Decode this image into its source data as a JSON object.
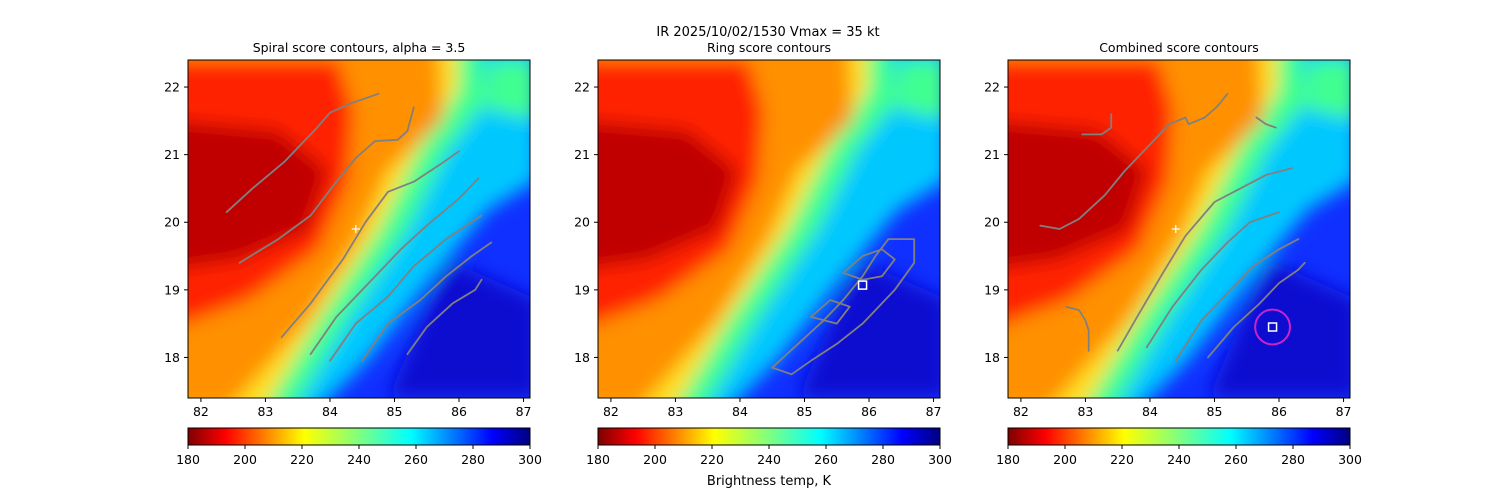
{
  "suptitle": "IR  2025/10/02/1530    Vmax = 35 kt",
  "colorbar_label": "Brightness temp, K",
  "contour_color": "#808080",
  "marker_color": "#ffffff",
  "circle_color": "#cc22cc",
  "colormap": "jet_r",
  "chart_data": [
    {
      "type": "heatmap",
      "title": "Spiral score contours, alpha =  3.5",
      "xlim": [
        81.8,
        87.1
      ],
      "ylim": [
        17.4,
        22.4
      ],
      "xticks": [
        "82",
        "83",
        "84",
        "85",
        "86",
        "87"
      ],
      "yticks": [
        "18",
        "19",
        "20",
        "21",
        "22"
      ],
      "colorbar": {
        "range": [
          180,
          300
        ],
        "ticks": [
          "180",
          "200",
          "220",
          "240",
          "260",
          "280",
          "300"
        ]
      },
      "center_marker": {
        "x": 84.4,
        "y": 19.9,
        "symbol": "+"
      },
      "contours": [
        [
          [
            82.4,
            20.15
          ],
          [
            82.8,
            20.5
          ],
          [
            83.3,
            20.9
          ],
          [
            83.8,
            21.4
          ],
          [
            84.0,
            21.62
          ],
          [
            84.3,
            21.75
          ],
          [
            84.75,
            21.9
          ]
        ],
        [
          [
            82.6,
            19.4
          ],
          [
            83.2,
            19.75
          ],
          [
            83.7,
            20.1
          ],
          [
            84.1,
            20.6
          ],
          [
            84.4,
            20.95
          ],
          [
            84.7,
            21.2
          ],
          [
            85.05,
            21.22
          ],
          [
            85.2,
            21.35
          ],
          [
            85.3,
            21.7
          ]
        ],
        [
          [
            83.25,
            18.3
          ],
          [
            83.7,
            18.8
          ],
          [
            84.2,
            19.45
          ],
          [
            84.55,
            20.0
          ],
          [
            84.9,
            20.45
          ],
          [
            85.3,
            20.6
          ],
          [
            85.7,
            20.85
          ],
          [
            86.0,
            21.05
          ]
        ],
        [
          [
            83.7,
            18.05
          ],
          [
            84.1,
            18.6
          ],
          [
            84.6,
            19.1
          ],
          [
            85.1,
            19.6
          ],
          [
            85.5,
            19.95
          ],
          [
            86.0,
            20.35
          ],
          [
            86.3,
            20.65
          ]
        ],
        [
          [
            84.0,
            17.95
          ],
          [
            84.4,
            18.5
          ],
          [
            84.9,
            18.9
          ],
          [
            85.3,
            19.35
          ],
          [
            85.8,
            19.75
          ],
          [
            86.35,
            20.1
          ]
        ],
        [
          [
            84.5,
            17.95
          ],
          [
            84.9,
            18.5
          ],
          [
            85.4,
            18.85
          ],
          [
            85.8,
            19.2
          ],
          [
            86.2,
            19.5
          ],
          [
            86.5,
            19.7
          ]
        ],
        [
          [
            85.2,
            18.05
          ],
          [
            85.5,
            18.45
          ],
          [
            85.9,
            18.8
          ],
          [
            86.25,
            19.0
          ],
          [
            86.35,
            19.15
          ]
        ]
      ]
    },
    {
      "type": "heatmap",
      "title": "Ring score contours",
      "xlim": [
        81.8,
        87.1
      ],
      "ylim": [
        17.4,
        22.4
      ],
      "xticks": [
        "82",
        "83",
        "84",
        "85",
        "86",
        "87"
      ],
      "yticks": [
        "18",
        "19",
        "20",
        "21",
        "22"
      ],
      "colorbar": {
        "range": [
          180,
          300
        ],
        "ticks": [
          "180",
          "200",
          "220",
          "240",
          "260",
          "280",
          "300"
        ]
      },
      "box_marker": {
        "x": 85.9,
        "y": 19.07,
        "symbol": "square"
      },
      "contours": [
        [
          [
            84.5,
            17.85
          ],
          [
            84.9,
            18.2
          ],
          [
            85.3,
            18.55
          ],
          [
            85.6,
            18.85
          ],
          [
            85.9,
            19.2
          ],
          [
            86.1,
            19.5
          ],
          [
            86.3,
            19.75
          ],
          [
            86.7,
            19.75
          ],
          [
            86.7,
            19.4
          ],
          [
            86.4,
            19.0
          ],
          [
            86.1,
            18.7
          ],
          [
            85.9,
            18.5
          ],
          [
            85.5,
            18.2
          ],
          [
            85.1,
            17.95
          ],
          [
            84.8,
            17.75
          ],
          [
            84.5,
            17.85
          ]
        ],
        [
          [
            85.6,
            19.25
          ],
          [
            85.9,
            19.5
          ],
          [
            86.2,
            19.6
          ],
          [
            86.4,
            19.45
          ],
          [
            86.2,
            19.2
          ],
          [
            85.9,
            19.15
          ],
          [
            85.6,
            19.25
          ]
        ],
        [
          [
            85.1,
            18.6
          ],
          [
            85.4,
            18.85
          ],
          [
            85.7,
            18.75
          ],
          [
            85.5,
            18.5
          ],
          [
            85.1,
            18.6
          ]
        ]
      ]
    },
    {
      "type": "heatmap",
      "title": "Combined score contours",
      "xlim": [
        81.8,
        87.1
      ],
      "ylim": [
        17.4,
        22.4
      ],
      "xticks": [
        "82",
        "83",
        "84",
        "85",
        "86",
        "87"
      ],
      "yticks": [
        "18",
        "19",
        "20",
        "21",
        "22"
      ],
      "colorbar": {
        "range": [
          180,
          300
        ],
        "ticks": [
          "180",
          "200",
          "220",
          "240",
          "260",
          "280",
          "300"
        ]
      },
      "center_marker": {
        "x": 84.4,
        "y": 19.9,
        "symbol": "+"
      },
      "box_marker": {
        "x": 85.9,
        "y": 18.45,
        "symbol": "square"
      },
      "circle_marker": {
        "x": 85.9,
        "y": 18.45,
        "radius_deg": 0.27
      },
      "contours": [
        [
          [
            82.3,
            19.95
          ],
          [
            82.6,
            19.9
          ],
          [
            82.9,
            20.05
          ],
          [
            83.3,
            20.4
          ],
          [
            83.6,
            20.75
          ],
          [
            83.9,
            21.05
          ],
          [
            84.05,
            21.2
          ],
          [
            84.15,
            21.3
          ]
        ],
        [
          [
            82.95,
            21.3
          ],
          [
            83.25,
            21.3
          ],
          [
            83.4,
            21.4
          ],
          [
            83.4,
            21.6
          ]
        ],
        [
          [
            84.15,
            21.3
          ],
          [
            84.3,
            21.45
          ],
          [
            84.55,
            21.55
          ],
          [
            84.6,
            21.45
          ],
          [
            84.85,
            21.55
          ],
          [
            85.05,
            21.72
          ],
          [
            85.2,
            21.9
          ]
        ],
        [
          [
            85.65,
            21.55
          ],
          [
            85.8,
            21.45
          ],
          [
            85.95,
            21.4
          ]
        ],
        [
          [
            83.5,
            18.1
          ],
          [
            83.8,
            18.6
          ],
          [
            84.2,
            19.25
          ],
          [
            84.55,
            19.8
          ],
          [
            85.0,
            20.3
          ],
          [
            85.5,
            20.55
          ],
          [
            85.8,
            20.7
          ],
          [
            86.2,
            20.8
          ]
        ],
        [
          [
            83.95,
            18.15
          ],
          [
            84.35,
            18.75
          ],
          [
            84.8,
            19.3
          ],
          [
            85.2,
            19.7
          ],
          [
            85.55,
            20.0
          ],
          [
            86.0,
            20.15
          ]
        ],
        [
          [
            84.4,
            17.95
          ],
          [
            84.8,
            18.55
          ],
          [
            85.2,
            18.95
          ],
          [
            85.6,
            19.35
          ],
          [
            86.0,
            19.6
          ],
          [
            86.3,
            19.75
          ]
        ],
        [
          [
            84.9,
            18.0
          ],
          [
            85.3,
            18.45
          ],
          [
            85.7,
            18.8
          ],
          [
            86.0,
            19.1
          ],
          [
            86.3,
            19.3
          ],
          [
            86.4,
            19.4
          ]
        ],
        [
          [
            82.7,
            18.75
          ],
          [
            82.9,
            18.7
          ],
          [
            83.0,
            18.55
          ],
          [
            83.05,
            18.4
          ],
          [
            83.05,
            18.1
          ]
        ]
      ]
    }
  ]
}
